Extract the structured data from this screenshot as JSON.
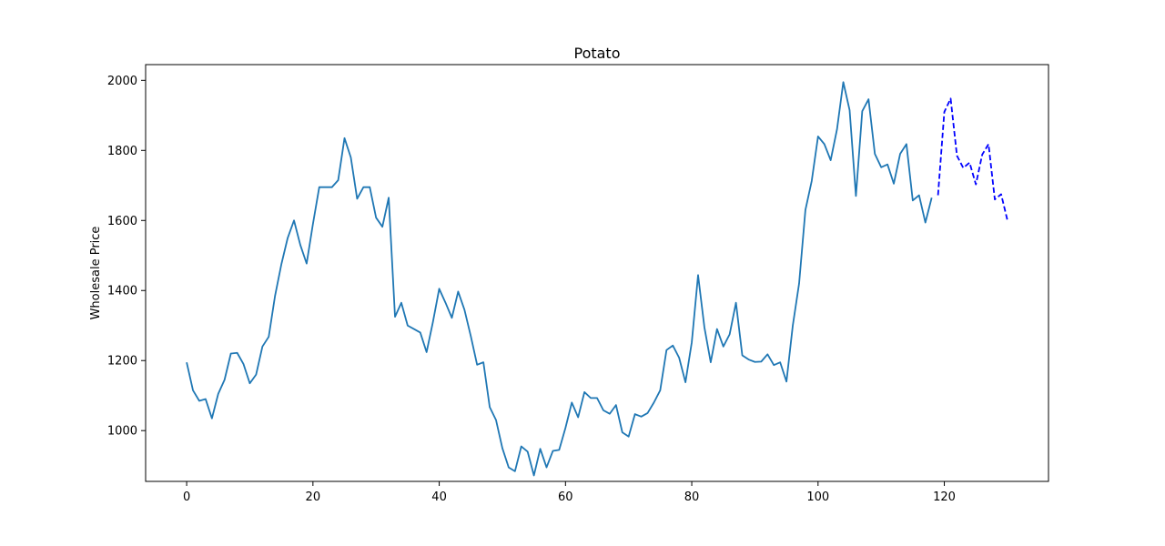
{
  "chart_data": {
    "type": "line",
    "title": "Potato",
    "xlabel": "",
    "ylabel": "Wholesale Price",
    "xlim": [
      -6.5,
      136.5
    ],
    "ylim": [
      855,
      2045
    ],
    "xticks": [
      0,
      20,
      40,
      60,
      80,
      100,
      120
    ],
    "yticks": [
      1000,
      1200,
      1400,
      1600,
      1800,
      2000
    ],
    "grid": false,
    "series": [
      {
        "style": "solid",
        "color": "#1f77b4",
        "x": [
          0,
          1,
          2,
          3,
          4,
          5,
          6,
          7,
          8,
          9,
          10,
          11,
          12,
          13,
          14,
          15,
          16,
          17,
          18,
          19,
          20,
          21,
          22,
          23,
          24,
          25,
          26,
          27,
          28,
          29,
          30,
          31,
          32,
          33,
          34,
          35,
          36,
          37,
          38,
          39,
          40,
          41,
          42,
          43,
          44,
          45,
          46,
          47,
          48,
          49,
          50,
          51,
          52,
          53,
          54,
          55,
          56,
          57,
          58,
          59,
          60,
          61,
          62,
          63,
          64,
          65,
          66,
          67,
          68,
          69,
          70,
          71,
          72,
          73,
          74,
          75,
          76,
          77,
          78,
          79,
          80,
          81,
          82,
          83,
          84,
          85,
          86,
          87,
          88,
          89,
          90,
          91,
          92,
          93,
          94,
          95,
          96,
          97,
          98,
          99,
          100,
          101,
          102,
          103,
          104,
          105,
          106,
          107,
          108,
          109,
          110,
          111,
          112,
          113,
          114,
          115,
          116,
          117,
          118
        ],
        "values": [
          1195,
          1115,
          1085,
          1090,
          1035,
          1105,
          1145,
          1220,
          1222,
          1190,
          1135,
          1160,
          1240,
          1268,
          1385,
          1475,
          1550,
          1600,
          1530,
          1477,
          1590,
          1695,
          1695,
          1695,
          1715,
          1835,
          1780,
          1662,
          1695,
          1695,
          1608,
          1582,
          1665,
          1325,
          1365,
          1300,
          1290,
          1280,
          1224,
          1310,
          1405,
          1365,
          1322,
          1397,
          1345,
          1270,
          1188,
          1195,
          1067,
          1030,
          950,
          895,
          884,
          955,
          940,
          872,
          948,
          895,
          942,
          945,
          1008,
          1080,
          1038,
          1110,
          1093,
          1093,
          1058,
          1048,
          1073,
          995,
          983,
          1047,
          1040,
          1050,
          1080,
          1115,
          1230,
          1243,
          1208,
          1138,
          1252,
          1444,
          1295,
          1195,
          1290,
          1240,
          1275,
          1365,
          1215,
          1203,
          1196,
          1197,
          1218,
          1187,
          1195,
          1140,
          1300,
          1420,
          1630,
          1713,
          1840,
          1818,
          1772,
          1860,
          1995,
          1915,
          1670,
          1912,
          1946,
          1790,
          1752,
          1760,
          1705,
          1790,
          1818,
          1657,
          1672,
          1594,
          1665
        ]
      },
      {
        "style": "dashed",
        "color": "#0000ff",
        "x": [
          119,
          120,
          121,
          122,
          123,
          124,
          125,
          126,
          127,
          128,
          129,
          130
        ],
        "values": [
          1672,
          1910,
          1948,
          1785,
          1750,
          1765,
          1703,
          1788,
          1818,
          1660,
          1675,
          1600
        ]
      }
    ]
  }
}
